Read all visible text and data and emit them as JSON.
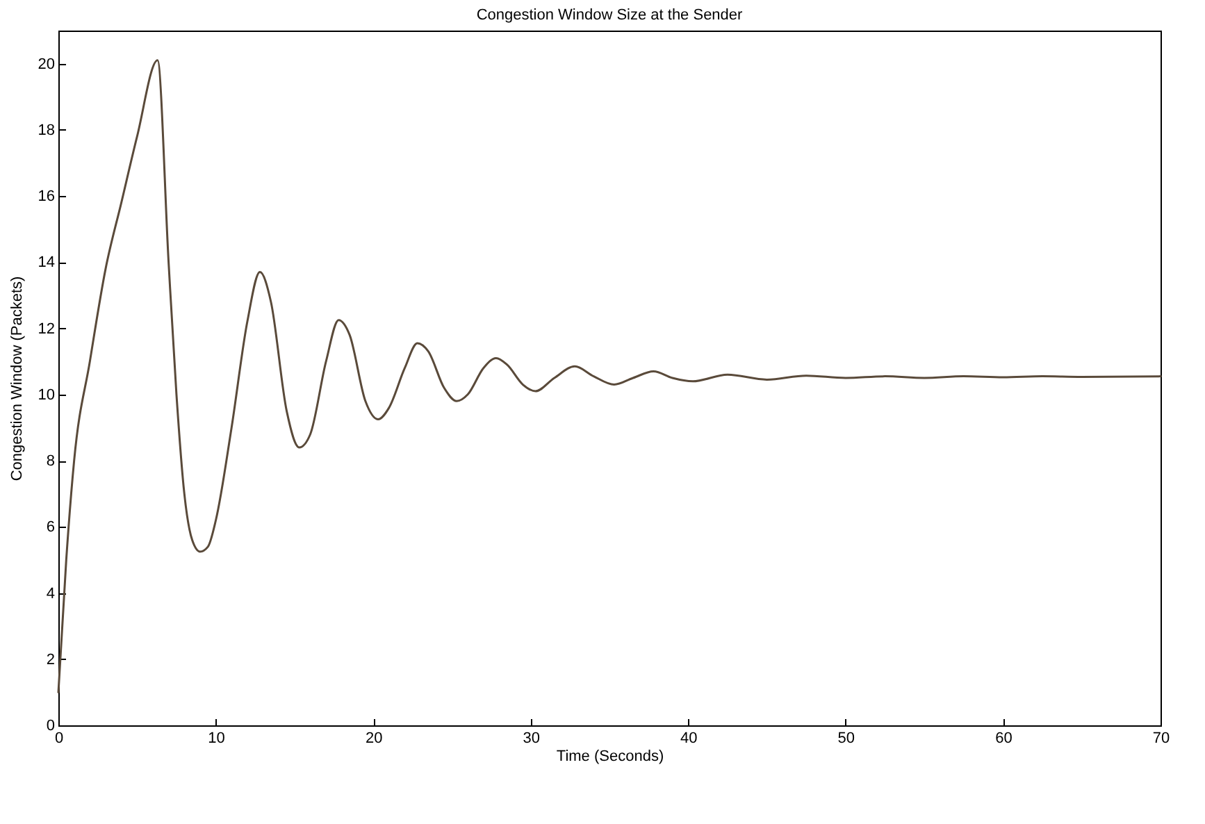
{
  "chart_data": {
    "type": "line",
    "title": "Congestion Window Size at the Sender",
    "xlabel": "Time (Seconds)",
    "ylabel": "Congestion Window (Packets)",
    "x": [
      0,
      0.5,
      1,
      2,
      3,
      4,
      5,
      6.3,
      7,
      7.5,
      8,
      8.5,
      9,
      9.5,
      10,
      11,
      12,
      12.8,
      13.5,
      14.5,
      15.3,
      16,
      17,
      17.8,
      18.5,
      19.5,
      20.3,
      21,
      22,
      22.8,
      23.5,
      24.5,
      25.3,
      26,
      27,
      27.8,
      28.5,
      29.5,
      30.3,
      31.5,
      32.8,
      34,
      35.3,
      36.5,
      37.8,
      39,
      40.3,
      42.5,
      45,
      47.5,
      50,
      52.5,
      55,
      57.5,
      60,
      62.5,
      65,
      70
    ],
    "series": [
      {
        "color": "#5a4a3a",
        "values": [
          1,
          5,
          8,
          11,
          13.8,
          15.8,
          17.8,
          20.1,
          14,
          10,
          7,
          5.6,
          5.25,
          5.4,
          6.2,
          9,
          12.2,
          13.7,
          12.8,
          9.5,
          8.4,
          8.8,
          11,
          12.25,
          11.8,
          9.8,
          9.25,
          9.6,
          10.8,
          11.55,
          11.3,
          10.2,
          9.8,
          10,
          10.8,
          11.1,
          10.9,
          10.3,
          10.1,
          10.5,
          10.85,
          10.55,
          10.3,
          10.5,
          10.7,
          10.5,
          10.4,
          10.6,
          10.45,
          10.57,
          10.5,
          10.55,
          10.5,
          10.55,
          10.52,
          10.55,
          10.53,
          10.55
        ]
      }
    ],
    "xlim": [
      0,
      70
    ],
    "xticks": [
      0,
      10,
      20,
      30,
      40,
      50,
      60,
      70
    ],
    "ylim": [
      0,
      21
    ],
    "yticks": [
      0,
      2,
      4,
      6,
      8,
      10,
      12,
      14,
      16,
      18,
      20
    ],
    "grid": false,
    "marker": "none",
    "line_style": "solid"
  }
}
